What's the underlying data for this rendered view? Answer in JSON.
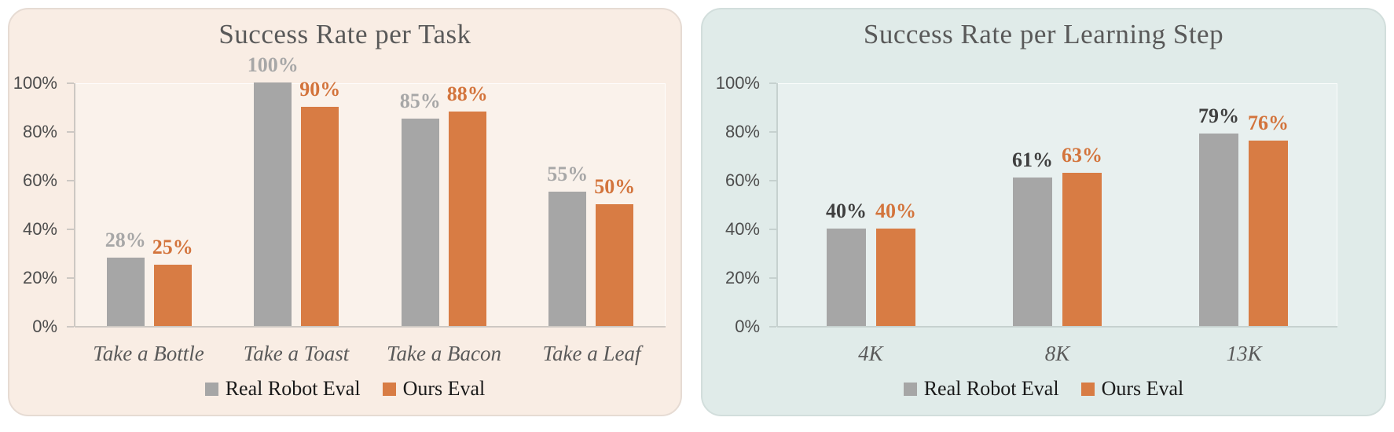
{
  "chart_data": [
    {
      "type": "bar",
      "title": "Success Rate per Task",
      "categories": [
        "Take a Bottle",
        "Take a Toast",
        "Take a Bacon",
        "Take a Leaf"
      ],
      "series": [
        {
          "name": "Real Robot Eval",
          "values": [
            28,
            100,
            85,
            55
          ]
        },
        {
          "name": "Ours Eval",
          "values": [
            25,
            90,
            88,
            50
          ]
        }
      ],
      "value_unit": "%",
      "ylim": [
        0,
        100
      ],
      "y_ticks": [
        "0%",
        "20%",
        "40%",
        "60%",
        "80%",
        "100%"
      ],
      "grid": false,
      "legend_position": "bottom",
      "style": {
        "panel_bg": "#F9EDE4",
        "panel_border": "#E6DBD3",
        "axis_color": "#CDC8C3",
        "title_color": "#595959",
        "tick_label_color": "#4D4D4D",
        "category_label_color": "#595959",
        "legend_text_color": "#1A1A1A",
        "series_bar_colors": [
          "#A6A6A6",
          "#D87C44"
        ],
        "series_value_label_colors": [
          "#A7A7A7",
          "#D3743C"
        ]
      }
    },
    {
      "type": "bar",
      "title": "Success Rate per Learning Step",
      "categories": [
        "4K",
        "8K",
        "13K"
      ],
      "series": [
        {
          "name": "Real Robot Eval",
          "values": [
            40,
            61,
            79
          ]
        },
        {
          "name": "Ours Eval",
          "values": [
            40,
            63,
            76
          ]
        }
      ],
      "value_unit": "%",
      "ylim": [
        0,
        100
      ],
      "y_ticks": [
        "0%",
        "20%",
        "40%",
        "60%",
        "80%",
        "100%"
      ],
      "grid": false,
      "legend_position": "bottom",
      "style": {
        "panel_bg": "#E0EBE9",
        "panel_border": "#D2DEDC",
        "axis_color": "#C6D1CF",
        "title_color": "#595959",
        "tick_label_color": "#4D4D4D",
        "category_label_color": "#595959",
        "legend_text_color": "#1A1A1A",
        "series_bar_colors": [
          "#A6A6A6",
          "#D87C44"
        ],
        "series_value_label_colors": [
          "#3F3F3F",
          "#D3743C"
        ]
      }
    }
  ]
}
